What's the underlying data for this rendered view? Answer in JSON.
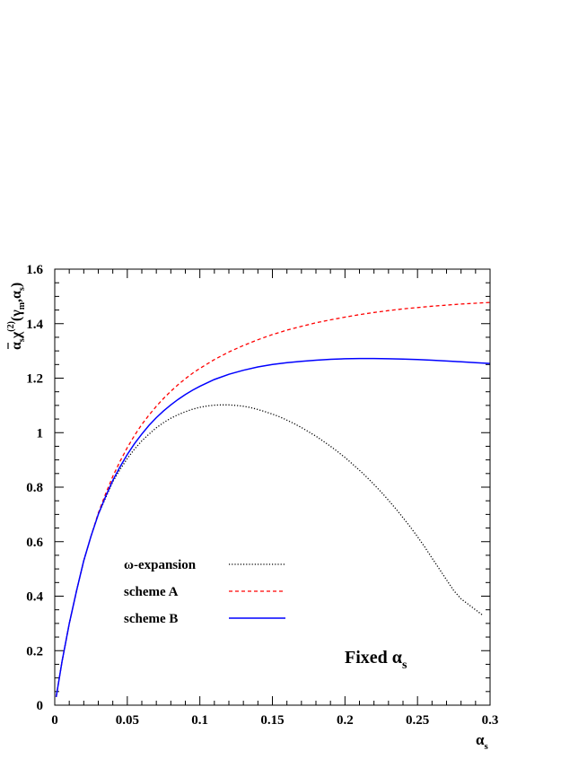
{
  "chart_data": {
    "type": "line",
    "title": "",
    "xlabel": "α_s",
    "ylabel": "ᾱ_s χ^(2)(γ_m, α_s)",
    "xlim": [
      0,
      0.3
    ],
    "ylim": [
      0,
      1.6
    ],
    "grid": false,
    "legend_position": "left-lower",
    "xticks": [
      0,
      0.05,
      0.1,
      0.15,
      0.2,
      0.25,
      0.3
    ],
    "xtick_labels": [
      "0",
      "0.05",
      "0.1",
      "0.15",
      "0.2",
      "0.25",
      "0.3"
    ],
    "yticks": [
      0,
      0.2,
      0.4,
      0.6,
      0.8,
      1,
      1.2,
      1.4,
      1.6
    ],
    "ytick_labels": [
      "0",
      "0.2",
      "0.4",
      "0.6",
      "0.8",
      "1",
      "1.2",
      "1.4",
      "1.6"
    ],
    "annotation": {
      "text": "Fixed α",
      "subscript": "s"
    },
    "series": [
      {
        "name": "ω-expansion",
        "color": "#000000",
        "style": "dotted",
        "x": [
          0.001,
          0.005,
          0.01,
          0.015,
          0.02,
          0.025,
          0.03,
          0.035,
          0.04,
          0.045,
          0.05,
          0.055,
          0.06,
          0.065,
          0.07,
          0.075,
          0.08,
          0.085,
          0.09,
          0.095,
          0.1,
          0.105,
          0.11,
          0.115,
          0.12,
          0.125,
          0.13,
          0.135,
          0.14,
          0.145,
          0.15,
          0.155,
          0.16,
          0.165,
          0.17,
          0.175,
          0.18,
          0.185,
          0.19,
          0.195,
          0.2,
          0.205,
          0.21,
          0.215,
          0.22,
          0.225,
          0.23,
          0.235,
          0.24,
          0.245,
          0.25,
          0.255,
          0.26,
          0.265,
          0.27,
          0.275,
          0.28,
          0.285,
          0.29,
          0.295
        ],
        "y": [
          0.03,
          0.16,
          0.3,
          0.42,
          0.53,
          0.62,
          0.7,
          0.76,
          0.82,
          0.865,
          0.905,
          0.94,
          0.97,
          0.995,
          1.018,
          1.037,
          1.053,
          1.066,
          1.077,
          1.086,
          1.093,
          1.098,
          1.101,
          1.102,
          1.102,
          1.1,
          1.097,
          1.092,
          1.085,
          1.077,
          1.068,
          1.058,
          1.046,
          1.033,
          1.019,
          1.003,
          0.987,
          0.969,
          0.95,
          0.93,
          0.909,
          0.886,
          0.862,
          0.837,
          0.81,
          0.782,
          0.752,
          0.721,
          0.688,
          0.654,
          0.618,
          0.58,
          0.54,
          0.5,
          0.46,
          0.42,
          0.39,
          0.37,
          0.35,
          0.33
        ]
      },
      {
        "name": "scheme A",
        "color": "#ff0000",
        "style": "dashed",
        "x": [
          0.001,
          0.005,
          0.01,
          0.015,
          0.02,
          0.025,
          0.03,
          0.035,
          0.04,
          0.045,
          0.05,
          0.055,
          0.06,
          0.065,
          0.07,
          0.075,
          0.08,
          0.085,
          0.09,
          0.095,
          0.1,
          0.11,
          0.12,
          0.13,
          0.14,
          0.15,
          0.16,
          0.17,
          0.18,
          0.19,
          0.2,
          0.21,
          0.22,
          0.23,
          0.24,
          0.25,
          0.26,
          0.27,
          0.28,
          0.29,
          0.3
        ],
        "y": [
          0.03,
          0.16,
          0.3,
          0.42,
          0.53,
          0.62,
          0.705,
          0.775,
          0.84,
          0.895,
          0.945,
          0.99,
          1.03,
          1.065,
          1.097,
          1.126,
          1.152,
          1.176,
          1.198,
          1.218,
          1.236,
          1.268,
          1.296,
          1.32,
          1.341,
          1.36,
          1.376,
          1.39,
          1.403,
          1.414,
          1.424,
          1.433,
          1.441,
          1.448,
          1.454,
          1.459,
          1.464,
          1.468,
          1.472,
          1.475,
          1.478
        ]
      },
      {
        "name": "scheme B",
        "color": "#0000ff",
        "style": "solid",
        "x": [
          0.001,
          0.005,
          0.01,
          0.015,
          0.02,
          0.025,
          0.03,
          0.035,
          0.04,
          0.045,
          0.05,
          0.055,
          0.06,
          0.065,
          0.07,
          0.075,
          0.08,
          0.085,
          0.09,
          0.095,
          0.1,
          0.11,
          0.12,
          0.13,
          0.14,
          0.15,
          0.16,
          0.17,
          0.18,
          0.19,
          0.2,
          0.21,
          0.22,
          0.23,
          0.24,
          0.25,
          0.26,
          0.27,
          0.28,
          0.29,
          0.3
        ],
        "y": [
          0.03,
          0.16,
          0.3,
          0.42,
          0.53,
          0.62,
          0.7,
          0.765,
          0.825,
          0.875,
          0.92,
          0.96,
          0.995,
          1.027,
          1.055,
          1.08,
          1.102,
          1.122,
          1.14,
          1.156,
          1.17,
          1.195,
          1.214,
          1.229,
          1.241,
          1.25,
          1.257,
          1.262,
          1.266,
          1.269,
          1.271,
          1.272,
          1.272,
          1.271,
          1.27,
          1.268,
          1.266,
          1.263,
          1.26,
          1.257,
          1.254
        ]
      }
    ]
  }
}
